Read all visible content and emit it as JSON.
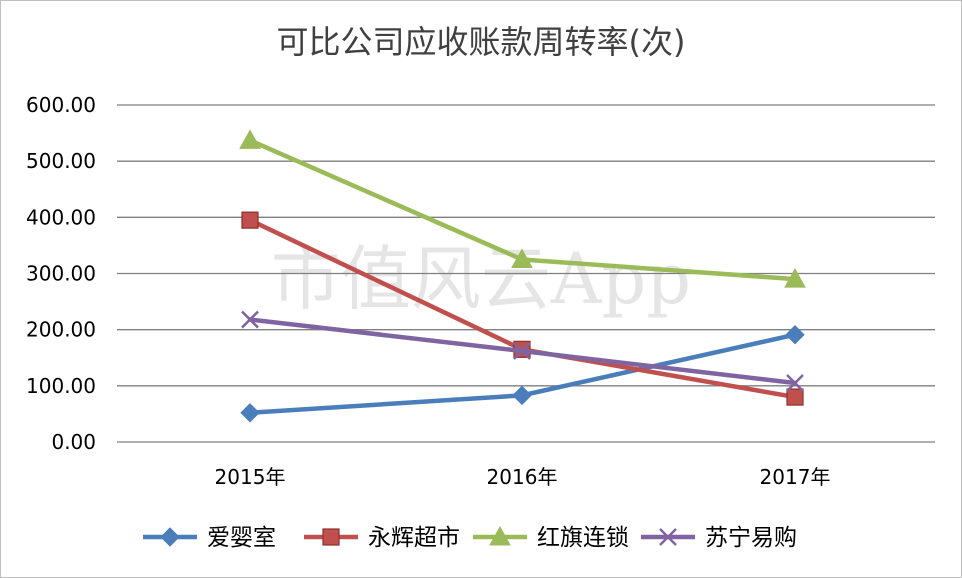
{
  "chart_data": {
    "type": "line",
    "title": "可比公司应收账款周转率(次)",
    "categories": [
      "2015年",
      "2016年",
      "2017年"
    ],
    "ylim": [
      0,
      600
    ],
    "yticks": [
      "0.00",
      "100.00",
      "200.00",
      "300.00",
      "400.00",
      "500.00",
      "600.00"
    ],
    "grid": true,
    "legend_position": "bottom",
    "watermark": "市值风云App",
    "series": [
      {
        "name": "爱婴室",
        "values": [
          52,
          83,
          191
        ],
        "color": "#4a7ebb",
        "marker": "diamond"
      },
      {
        "name": "永辉超市",
        "values": [
          395,
          165,
          80
        ],
        "color": "#c0504d",
        "marker": "square"
      },
      {
        "name": "红旗连锁",
        "values": [
          537,
          325,
          290
        ],
        "color": "#9bbb59",
        "marker": "triangle"
      },
      {
        "name": "苏宁易购",
        "values": [
          218,
          162,
          105
        ],
        "color": "#8064a2",
        "marker": "x"
      }
    ]
  }
}
